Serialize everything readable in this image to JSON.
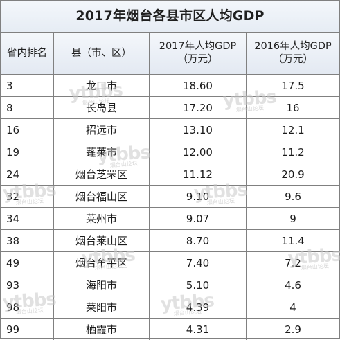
{
  "title": "2017年烟台各县市区人均GDP",
  "headers": {
    "rank": "省内排名",
    "county_line1": "县（市、区）",
    "gdp2017_line1": "2017年人均GDP",
    "gdp2017_line2": "（万元）",
    "gdp2016_line1": "2016年人均GDP",
    "gdp2016_line2": "（万元）"
  },
  "rows": [
    {
      "rank": "3",
      "county": "龙口市",
      "gdp2017": "18.60",
      "gdp2016": "17.5"
    },
    {
      "rank": "8",
      "county": "长岛县",
      "gdp2017": "17.20",
      "gdp2016": "16"
    },
    {
      "rank": "16",
      "county": "招远市",
      "gdp2017": "13.10",
      "gdp2016": "12.1"
    },
    {
      "rank": "19",
      "county": "蓬莱市",
      "gdp2017": "12.00",
      "gdp2016": "11.2"
    },
    {
      "rank": "24",
      "county": "烟台芝罘区",
      "gdp2017": "11.12",
      "gdp2016": "20.9"
    },
    {
      "rank": "32",
      "county": "烟台福山区",
      "gdp2017": "9.10",
      "gdp2016": "9.6"
    },
    {
      "rank": "34",
      "county": "莱州市",
      "gdp2017": "9.07",
      "gdp2016": "9"
    },
    {
      "rank": "38",
      "county": "烟台莱山区",
      "gdp2017": "8.70",
      "gdp2016": "11.4"
    },
    {
      "rank": "49",
      "county": "烟台牟平区",
      "gdp2017": "7.40",
      "gdp2016": "7.2"
    },
    {
      "rank": "93",
      "county": "海阳市",
      "gdp2017": "5.10",
      "gdp2016": "4.6"
    },
    {
      "rank": "98",
      "county": "莱阳市",
      "gdp2017": "4.39",
      "gdp2016": "4"
    },
    {
      "rank": "99",
      "county": "栖霞市",
      "gdp2017": "4.31",
      "gdp2016": "2.9"
    }
  ],
  "watermark": {
    "text": "ytbbs",
    "subtext": "烟台山论坛"
  }
}
